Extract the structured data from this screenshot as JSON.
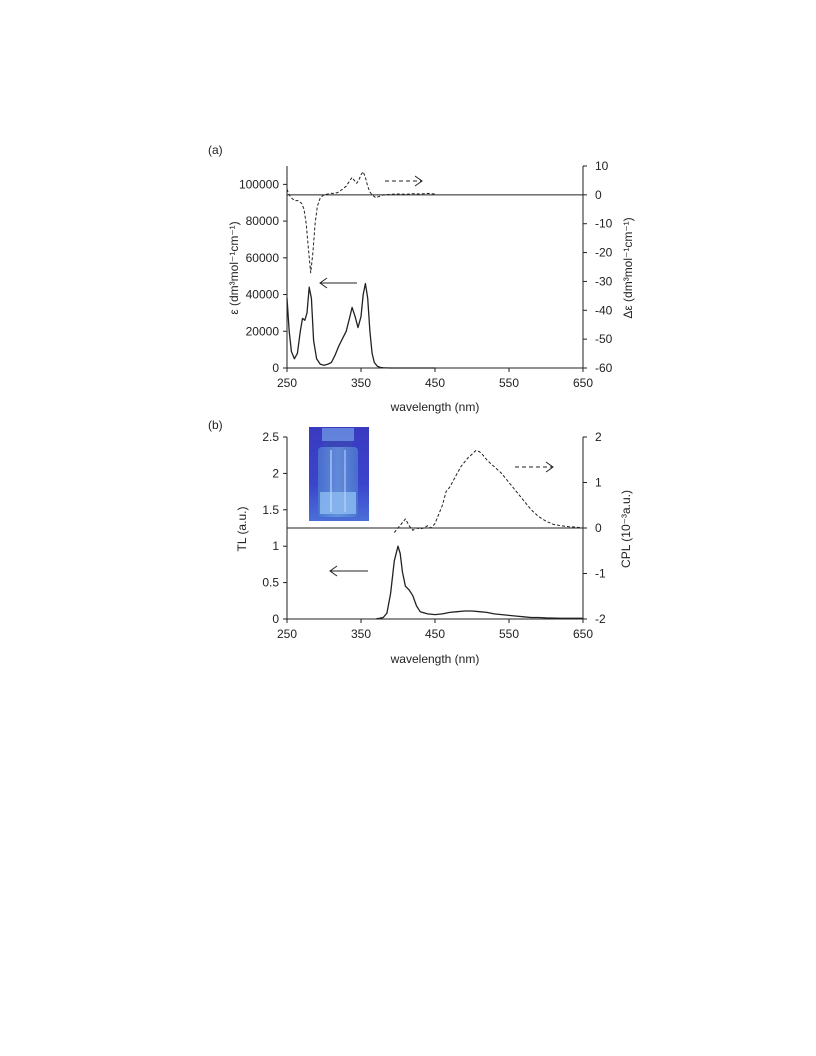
{
  "chart_data": [
    {
      "type": "line",
      "panel_label": "(a)",
      "xlabel": "wavelength  (nm)",
      "xlim": [
        250,
        650
      ],
      "xticks": [
        250,
        350,
        450,
        550,
        650
      ],
      "ylabel_left": "ε (dm³mol⁻¹cm⁻¹)",
      "ylabel_right": "Δε (dm³mol⁻¹cm⁻¹)",
      "ylim_left": [
        0,
        110000
      ],
      "ylim_right": [
        -60,
        10
      ],
      "yticks_left": [
        0,
        20000,
        40000,
        60000,
        80000,
        100000
      ],
      "yticks_right": [
        -60,
        -50,
        -40,
        -30,
        -20,
        -10,
        0,
        10
      ],
      "series": [
        {
          "axis": "left",
          "style": "solid",
          "x": [
            250,
            253,
            256,
            260,
            264,
            268,
            271,
            274,
            277,
            280,
            283,
            286,
            290,
            295,
            300,
            305,
            310,
            315,
            320,
            325,
            330,
            335,
            338,
            342,
            346,
            350,
            353,
            356,
            359,
            362,
            365,
            368,
            372,
            376,
            380,
            385,
            390,
            400,
            450
          ],
          "y": [
            38000,
            20000,
            9000,
            5000,
            8000,
            20000,
            27000,
            26000,
            30000,
            44000,
            38000,
            15000,
            5000,
            2000,
            1500,
            2000,
            3000,
            7000,
            12000,
            16000,
            20000,
            28000,
            33000,
            28000,
            22000,
            28000,
            40000,
            46000,
            38000,
            20000,
            8000,
            3000,
            1000,
            300,
            100,
            50,
            0,
            0,
            0
          ]
        },
        {
          "axis": "right",
          "style": "dashed",
          "x": [
            250,
            253,
            256,
            260,
            265,
            270,
            273,
            276,
            279,
            282,
            285,
            288,
            291,
            295,
            300,
            305,
            310,
            315,
            320,
            325,
            330,
            335,
            338,
            341,
            344,
            347,
            350,
            353,
            356,
            359,
            362,
            365,
            370,
            375,
            380,
            390,
            400,
            410,
            420,
            430,
            440,
            450
          ],
          "y": [
            2,
            0,
            -1,
            -2,
            -2,
            -3,
            -5,
            -10,
            -19,
            -27,
            -20,
            -10,
            -4,
            -1,
            0,
            0.3,
            0.5,
            0.5,
            1,
            2,
            3,
            5,
            6,
            5,
            4,
            5,
            7,
            8,
            6,
            3,
            1,
            0,
            -1,
            -0.5,
            0,
            0.2,
            0.3,
            0.2,
            0.4,
            0.3,
            0.5,
            0.3
          ]
        }
      ]
    },
    {
      "type": "line",
      "panel_label": "(b)",
      "xlabel": "wavelength (nm)",
      "xlim": [
        250,
        650
      ],
      "xticks": [
        250,
        350,
        450,
        550,
        650
      ],
      "ylabel_left": "TL  (a.u.)",
      "ylabel_right": "CPL (10⁻³a.u.)",
      "ylim_left": [
        0,
        2.5
      ],
      "ylim_right": [
        -2,
        2
      ],
      "yticks_left": [
        0,
        0.5,
        1,
        1.5,
        2,
        2.5
      ],
      "yticks_left_labels": [
        "0",
        "0.5",
        "1",
        "1.5",
        "2",
        "2.5"
      ],
      "yticks_right": [
        -2,
        -1,
        0,
        1,
        2
      ],
      "series": [
        {
          "axis": "left",
          "style": "solid",
          "x": [
            370,
            380,
            385,
            390,
            395,
            400,
            403,
            406,
            410,
            415,
            420,
            425,
            430,
            440,
            450,
            460,
            470,
            480,
            490,
            500,
            510,
            520,
            530,
            540,
            550,
            560,
            570,
            580,
            590,
            600,
            620,
            650
          ],
          "y": [
            0,
            0.02,
            0.08,
            0.35,
            0.8,
            1.0,
            0.9,
            0.65,
            0.45,
            0.4,
            0.32,
            0.18,
            0.1,
            0.07,
            0.06,
            0.07,
            0.09,
            0.1,
            0.11,
            0.11,
            0.1,
            0.09,
            0.07,
            0.06,
            0.05,
            0.04,
            0.03,
            0.02,
            0.02,
            0.015,
            0.01,
            0.01
          ]
        },
        {
          "axis": "right",
          "style": "dashed",
          "x": [
            395,
            400,
            405,
            410,
            415,
            420,
            425,
            430,
            435,
            440,
            445,
            450,
            455,
            460,
            465,
            470,
            475,
            480,
            485,
            490,
            495,
            500,
            505,
            510,
            515,
            520,
            525,
            530,
            540,
            550,
            560,
            570,
            580,
            590,
            600,
            610,
            620,
            630,
            640,
            650
          ],
          "y": [
            -0.1,
            0,
            0.1,
            0.2,
            0.05,
            -0.05,
            0,
            -0.02,
            0,
            0.05,
            0,
            0.1,
            0.3,
            0.5,
            0.8,
            0.9,
            1.05,
            1.2,
            1.35,
            1.45,
            1.55,
            1.62,
            1.7,
            1.68,
            1.6,
            1.5,
            1.42,
            1.35,
            1.2,
            1.0,
            0.8,
            0.6,
            0.4,
            0.25,
            0.15,
            0.08,
            0.05,
            0.03,
            0.02,
            0
          ]
        }
      ],
      "inset": "vial-photo"
    }
  ],
  "colors": {
    "ink": "#222222",
    "inset_bg": "#3a3fc8",
    "inset_glow": "#5f9ad8"
  }
}
